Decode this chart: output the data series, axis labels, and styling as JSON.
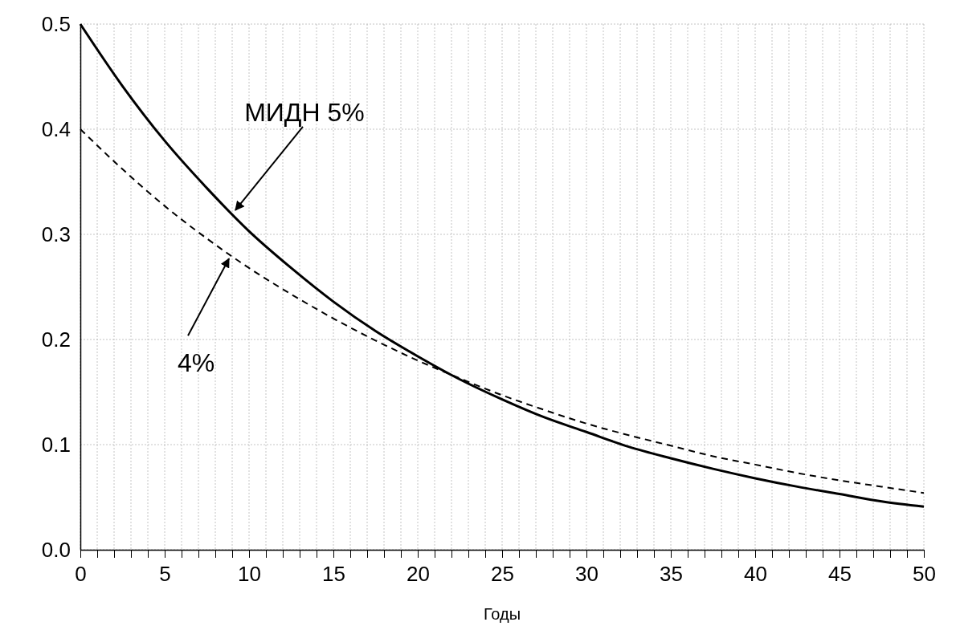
{
  "chart_data": {
    "type": "line",
    "xlabel": "Годы",
    "x": [
      0,
      2.5,
      5,
      7.5,
      10,
      12.5,
      15,
      17.5,
      20,
      22.5,
      25,
      27.5,
      30,
      32.5,
      35,
      37.5,
      40,
      42.5,
      45,
      47.5,
      50
    ],
    "series": [
      {
        "color": "#000000",
        "line_style": "solid",
        "values": [
          0.5,
          0.441,
          0.389,
          0.344,
          0.303,
          0.268,
          0.236,
          0.208,
          0.184,
          0.162,
          0.143,
          0.126,
          0.112,
          0.098,
          0.087,
          0.077,
          0.068,
          0.06,
          0.053,
          0.046,
          0.041
        ]
      },
      {
        "color": "#000000",
        "line_style": "dashed",
        "values": [
          0.4,
          0.362,
          0.327,
          0.296,
          0.268,
          0.243,
          0.22,
          0.199,
          0.18,
          0.163,
          0.147,
          0.133,
          0.12,
          0.109,
          0.099,
          0.089,
          0.081,
          0.073,
          0.066,
          0.06,
          0.054
        ]
      }
    ],
    "xlim": [
      0,
      50
    ],
    "xticks": [
      0,
      {
        "value": 1,
        "label": null
      },
      {
        "value": 2,
        "label": null
      },
      {
        "value": 3,
        "label": null
      },
      {
        "value": 4,
        "label": null
      },
      5,
      {
        "value": 6,
        "label": null
      },
      {
        "value": 7,
        "label": null
      },
      {
        "value": 8,
        "label": null
      },
      {
        "value": 9,
        "label": null
      },
      10,
      {
        "value": 11,
        "label": null
      },
      {
        "value": 12,
        "label": null
      },
      {
        "value": 13,
        "label": null
      },
      {
        "value": 14,
        "label": null
      },
      15,
      {
        "value": 16,
        "label": null
      },
      {
        "value": 17,
        "label": null
      },
      {
        "value": 18,
        "label": null
      },
      {
        "value": 19,
        "label": null
      },
      20,
      {
        "value": 21,
        "label": null
      },
      {
        "value": 22,
        "label": null
      },
      {
        "value": 23,
        "label": null
      },
      {
        "value": 24,
        "label": null
      },
      25,
      {
        "value": 26,
        "label": null
      },
      {
        "value": 27,
        "label": null
      },
      {
        "value": 28,
        "label": null
      },
      {
        "value": 29,
        "label": null
      },
      30,
      {
        "value": 31,
        "label": null
      },
      {
        "value": 32,
        "label": null
      },
      {
        "value": 33,
        "label": null
      },
      {
        "value": 34,
        "label": null
      },
      35,
      {
        "value": 36,
        "label": null
      },
      {
        "value": 37,
        "label": null
      },
      {
        "value": 38,
        "label": null
      },
      {
        "value": 39,
        "label": null
      },
      40,
      {
        "value": 41,
        "label": null
      },
      {
        "value": 42,
        "label": null
      },
      {
        "value": 43,
        "label": null
      },
      {
        "value": 44,
        "label": null
      },
      45,
      {
        "value": 46,
        "label": null
      },
      {
        "value": 47,
        "label": null
      },
      {
        "value": 48,
        "label": null
      },
      {
        "value": 49,
        "label": null
      },
      50
    ],
    "ylim": [
      0,
      0.5
    ],
    "yticks": [
      {
        "value": 0,
        "label": "0.0"
      },
      0.1,
      0.2,
      0.3,
      0.4,
      0.5
    ],
    "grid": true,
    "annotations": [
      {
        "text": "МИДН 5%",
        "x": 9,
        "y": 0.32
      },
      {
        "text": "4%",
        "x": 9,
        "y": 0.28
      }
    ]
  }
}
